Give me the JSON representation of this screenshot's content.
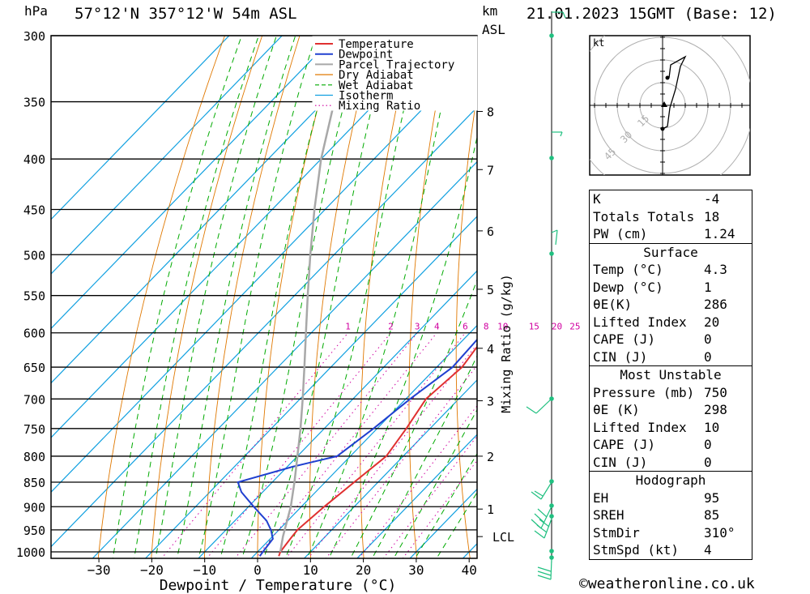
{
  "header": {
    "hpa": "hPa",
    "location": "57°12'N  357°12'W  54m  ASL",
    "km": "km",
    "asl": "ASL",
    "datetime": "21.01.2023  15GMT  (Base: 12)"
  },
  "legend": [
    "Temperature",
    "Dewpoint",
    "Parcel Trajectory",
    "Dry Adiabat",
    "Wet Adiabat",
    "Isotherm",
    "Mixing Ratio"
  ],
  "colors": {
    "temperature": "#e03030",
    "dewpoint": "#2040d0",
    "parcel": "#a8a8a8",
    "dry_adiabat": "#e07800",
    "wet_adiabat": "#00aa00",
    "isotherm": "#10a0e0",
    "mixing_ratio": "#d000a0",
    "wind": "#20c080"
  },
  "chart_data": {
    "type": "line",
    "xlabel": "Dewpoint / Temperature (°C)",
    "ylabel": "",
    "right_axis_label": "Mixing Ratio (g/kg)",
    "x_ticks": [
      -30,
      -20,
      -10,
      0,
      10,
      20,
      30,
      40
    ],
    "pressure_ticks": [
      300,
      350,
      400,
      450,
      500,
      550,
      600,
      650,
      700,
      750,
      800,
      850,
      900,
      950,
      1000
    ],
    "km_ticks": [
      {
        "label": "8",
        "p": 358
      },
      {
        "label": "7",
        "p": 410
      },
      {
        "label": "6",
        "p": 473
      },
      {
        "label": "5",
        "p": 542
      },
      {
        "label": "4",
        "p": 622
      },
      {
        "label": "3",
        "p": 703
      },
      {
        "label": "2",
        "p": 800
      },
      {
        "label": "1",
        "p": 905
      }
    ],
    "lcl_label": "LCL",
    "lcl_pressure": 965,
    "mixing_ratio_labels": [
      "1",
      "2",
      "3",
      "4",
      "6",
      "8",
      "10",
      "15",
      "20",
      "25"
    ],
    "series": [
      {
        "name": "Temperature",
        "points": [
          [
            1010,
            4.8
          ],
          [
            1000,
            4.3
          ],
          [
            970,
            3.8
          ],
          [
            950,
            3.5
          ],
          [
            900,
            4.3
          ],
          [
            850,
            5.5
          ],
          [
            800,
            6.8
          ],
          [
            750,
            5.5
          ],
          [
            700,
            3.8
          ],
          [
            650,
            4.8
          ],
          [
            600,
            3.3
          ],
          [
            550,
            0.5
          ],
          [
            500,
            -3.7
          ],
          [
            450,
            -9.5
          ],
          [
            400,
            -16
          ],
          [
            350,
            -24
          ],
          [
            330,
            -28
          ],
          [
            300,
            -36
          ]
        ]
      },
      {
        "name": "Dewpoint",
        "points": [
          [
            1010,
            1.2
          ],
          [
            1000,
            1.0
          ],
          [
            970,
            0.5
          ],
          [
            950,
            -1.5
          ],
          [
            930,
            -4
          ],
          [
            900,
            -9
          ],
          [
            870,
            -14
          ],
          [
            850,
            -16.5
          ],
          [
            820,
            -9
          ],
          [
            800,
            -2.5
          ],
          [
            750,
            -0.7
          ],
          [
            700,
            0.8
          ],
          [
            650,
            3.0
          ],
          [
            600,
            2.5
          ],
          [
            550,
            -0.7
          ],
          [
            500,
            -6.5
          ],
          [
            450,
            -15
          ],
          [
            400,
            -21
          ],
          [
            350,
            -28
          ],
          [
            330,
            -33
          ],
          [
            300,
            -42
          ]
        ]
      },
      {
        "name": "Parcel Trajectory",
        "points": [
          [
            1000,
            4.3
          ],
          [
            965,
            2.0
          ],
          [
            900,
            -2.0
          ],
          [
            850,
            -5.8
          ],
          [
            800,
            -10
          ],
          [
            750,
            -14.5
          ],
          [
            700,
            -19.5
          ],
          [
            650,
            -25
          ],
          [
            600,
            -31
          ],
          [
            550,
            -37.5
          ],
          [
            500,
            -44.5
          ],
          [
            450,
            -52
          ],
          [
            400,
            -60
          ],
          [
            350,
            -68
          ],
          [
            300,
            -76
          ]
        ]
      }
    ],
    "grid": true
  },
  "hodograph": {
    "unit": "kt",
    "rings": [
      "15",
      "30",
      "45"
    ]
  },
  "indices": {
    "top": [
      {
        "label": "K",
        "value": "-4"
      },
      {
        "label": "Totals Totals",
        "value": "18"
      },
      {
        "label": "PW (cm)",
        "value": "1.24"
      }
    ],
    "surface": {
      "title": "Surface",
      "rows": [
        {
          "label": "Temp (°C)",
          "value": "4.3"
        },
        {
          "label": "Dewp (°C)",
          "value": "1"
        },
        {
          "label": "θE(K)",
          "value": "286"
        },
        {
          "label": "Lifted Index",
          "value": "20"
        },
        {
          "label": "CAPE (J)",
          "value": "0"
        },
        {
          "label": "CIN (J)",
          "value": "0"
        }
      ]
    },
    "most_unstable": {
      "title": "Most Unstable",
      "rows": [
        {
          "label": "Pressure (mb)",
          "value": "750"
        },
        {
          "label": "θE (K)",
          "value": "298"
        },
        {
          "label": "Lifted Index",
          "value": "10"
        },
        {
          "label": "CAPE (J)",
          "value": "0"
        },
        {
          "label": "CIN (J)",
          "value": "0"
        }
      ]
    },
    "hodograph_box": {
      "title": "Hodograph",
      "rows": [
        {
          "label": "EH",
          "value": "95"
        },
        {
          "label": "SREH",
          "value": "85"
        },
        {
          "label": "StmDir",
          "value": "310°"
        },
        {
          "label": "StmSpd (kt)",
          "value": "4"
        }
      ]
    }
  },
  "footer": "©weatheronline.co.uk"
}
